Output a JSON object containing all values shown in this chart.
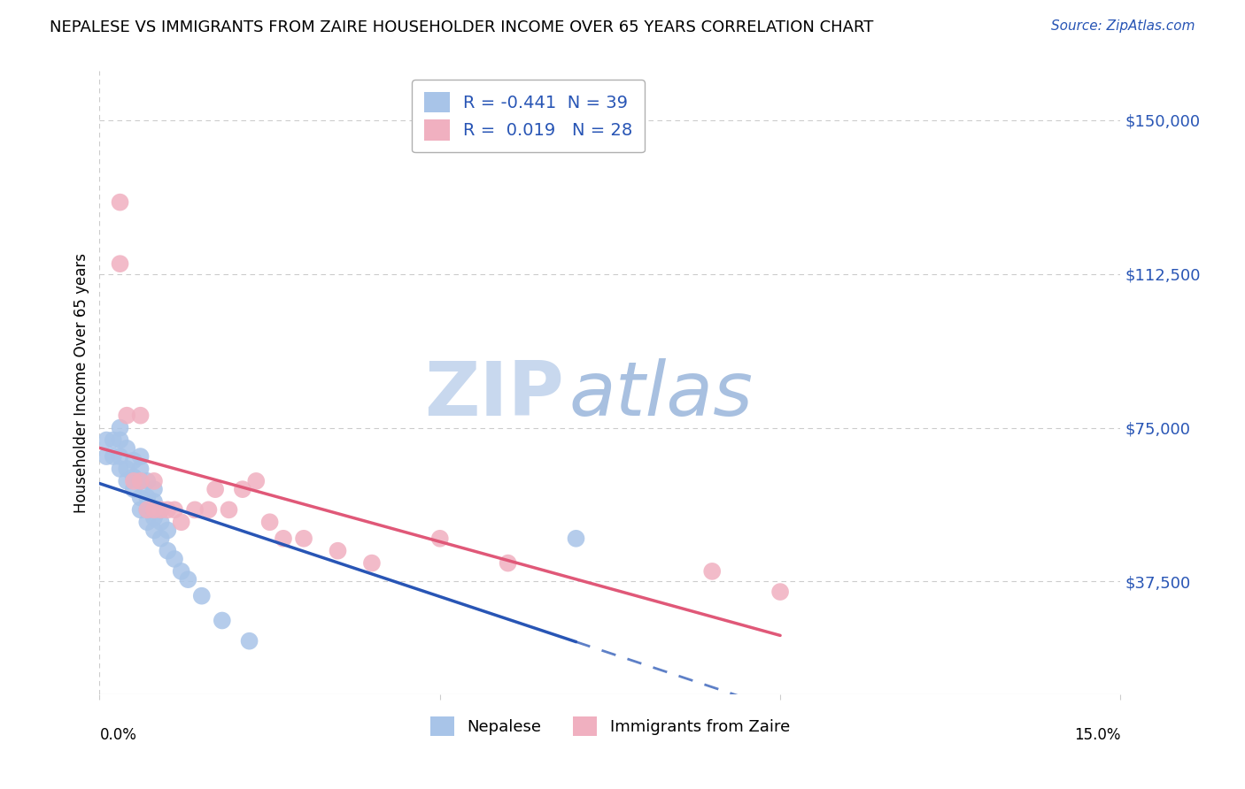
{
  "title": "NEPALESE VS IMMIGRANTS FROM ZAIRE HOUSEHOLDER INCOME OVER 65 YEARS CORRELATION CHART",
  "source": "Source: ZipAtlas.com",
  "ylabel": "Householder Income Over 65 years",
  "legend1_R": "-0.441",
  "legend1_N": "39",
  "legend2_R": "0.019",
  "legend2_N": "28",
  "nepalese_color": "#a8c4e8",
  "zaire_color": "#f0b0c0",
  "nepalese_line_color": "#2855b5",
  "zaire_line_color": "#e05878",
  "xlim": [
    0.0,
    0.15
  ],
  "ylim": [
    10000,
    162000
  ],
  "ytick_vals": [
    37500,
    75000,
    112500,
    150000
  ],
  "ytick_labels": [
    "$37,500",
    "$75,000",
    "$112,500",
    "$150,000"
  ],
  "nepalese_label": "Nepalese",
  "zaire_label": "Immigrants from Zaire",
  "nepalese_x": [
    0.001,
    0.001,
    0.002,
    0.002,
    0.003,
    0.003,
    0.003,
    0.003,
    0.004,
    0.004,
    0.004,
    0.005,
    0.005,
    0.005,
    0.006,
    0.006,
    0.006,
    0.006,
    0.006,
    0.007,
    0.007,
    0.007,
    0.007,
    0.008,
    0.008,
    0.008,
    0.008,
    0.009,
    0.009,
    0.009,
    0.01,
    0.01,
    0.011,
    0.012,
    0.013,
    0.015,
    0.018,
    0.022,
    0.07
  ],
  "nepalese_y": [
    68000,
    72000,
    68000,
    72000,
    65000,
    68000,
    72000,
    75000,
    62000,
    65000,
    70000,
    60000,
    63000,
    67000,
    55000,
    58000,
    62000,
    65000,
    68000,
    52000,
    55000,
    58000,
    62000,
    50000,
    53000,
    57000,
    60000,
    48000,
    52000,
    55000,
    45000,
    50000,
    43000,
    40000,
    38000,
    34000,
    28000,
    23000,
    48000
  ],
  "zaire_x": [
    0.003,
    0.003,
    0.004,
    0.005,
    0.006,
    0.006,
    0.007,
    0.008,
    0.008,
    0.009,
    0.01,
    0.011,
    0.012,
    0.014,
    0.016,
    0.017,
    0.019,
    0.021,
    0.023,
    0.025,
    0.027,
    0.03,
    0.035,
    0.04,
    0.05,
    0.06,
    0.09,
    0.1
  ],
  "zaire_y": [
    130000,
    115000,
    78000,
    62000,
    78000,
    62000,
    55000,
    62000,
    55000,
    55000,
    55000,
    55000,
    52000,
    55000,
    55000,
    60000,
    55000,
    60000,
    62000,
    52000,
    48000,
    48000,
    45000,
    42000,
    48000,
    42000,
    40000,
    35000
  ]
}
